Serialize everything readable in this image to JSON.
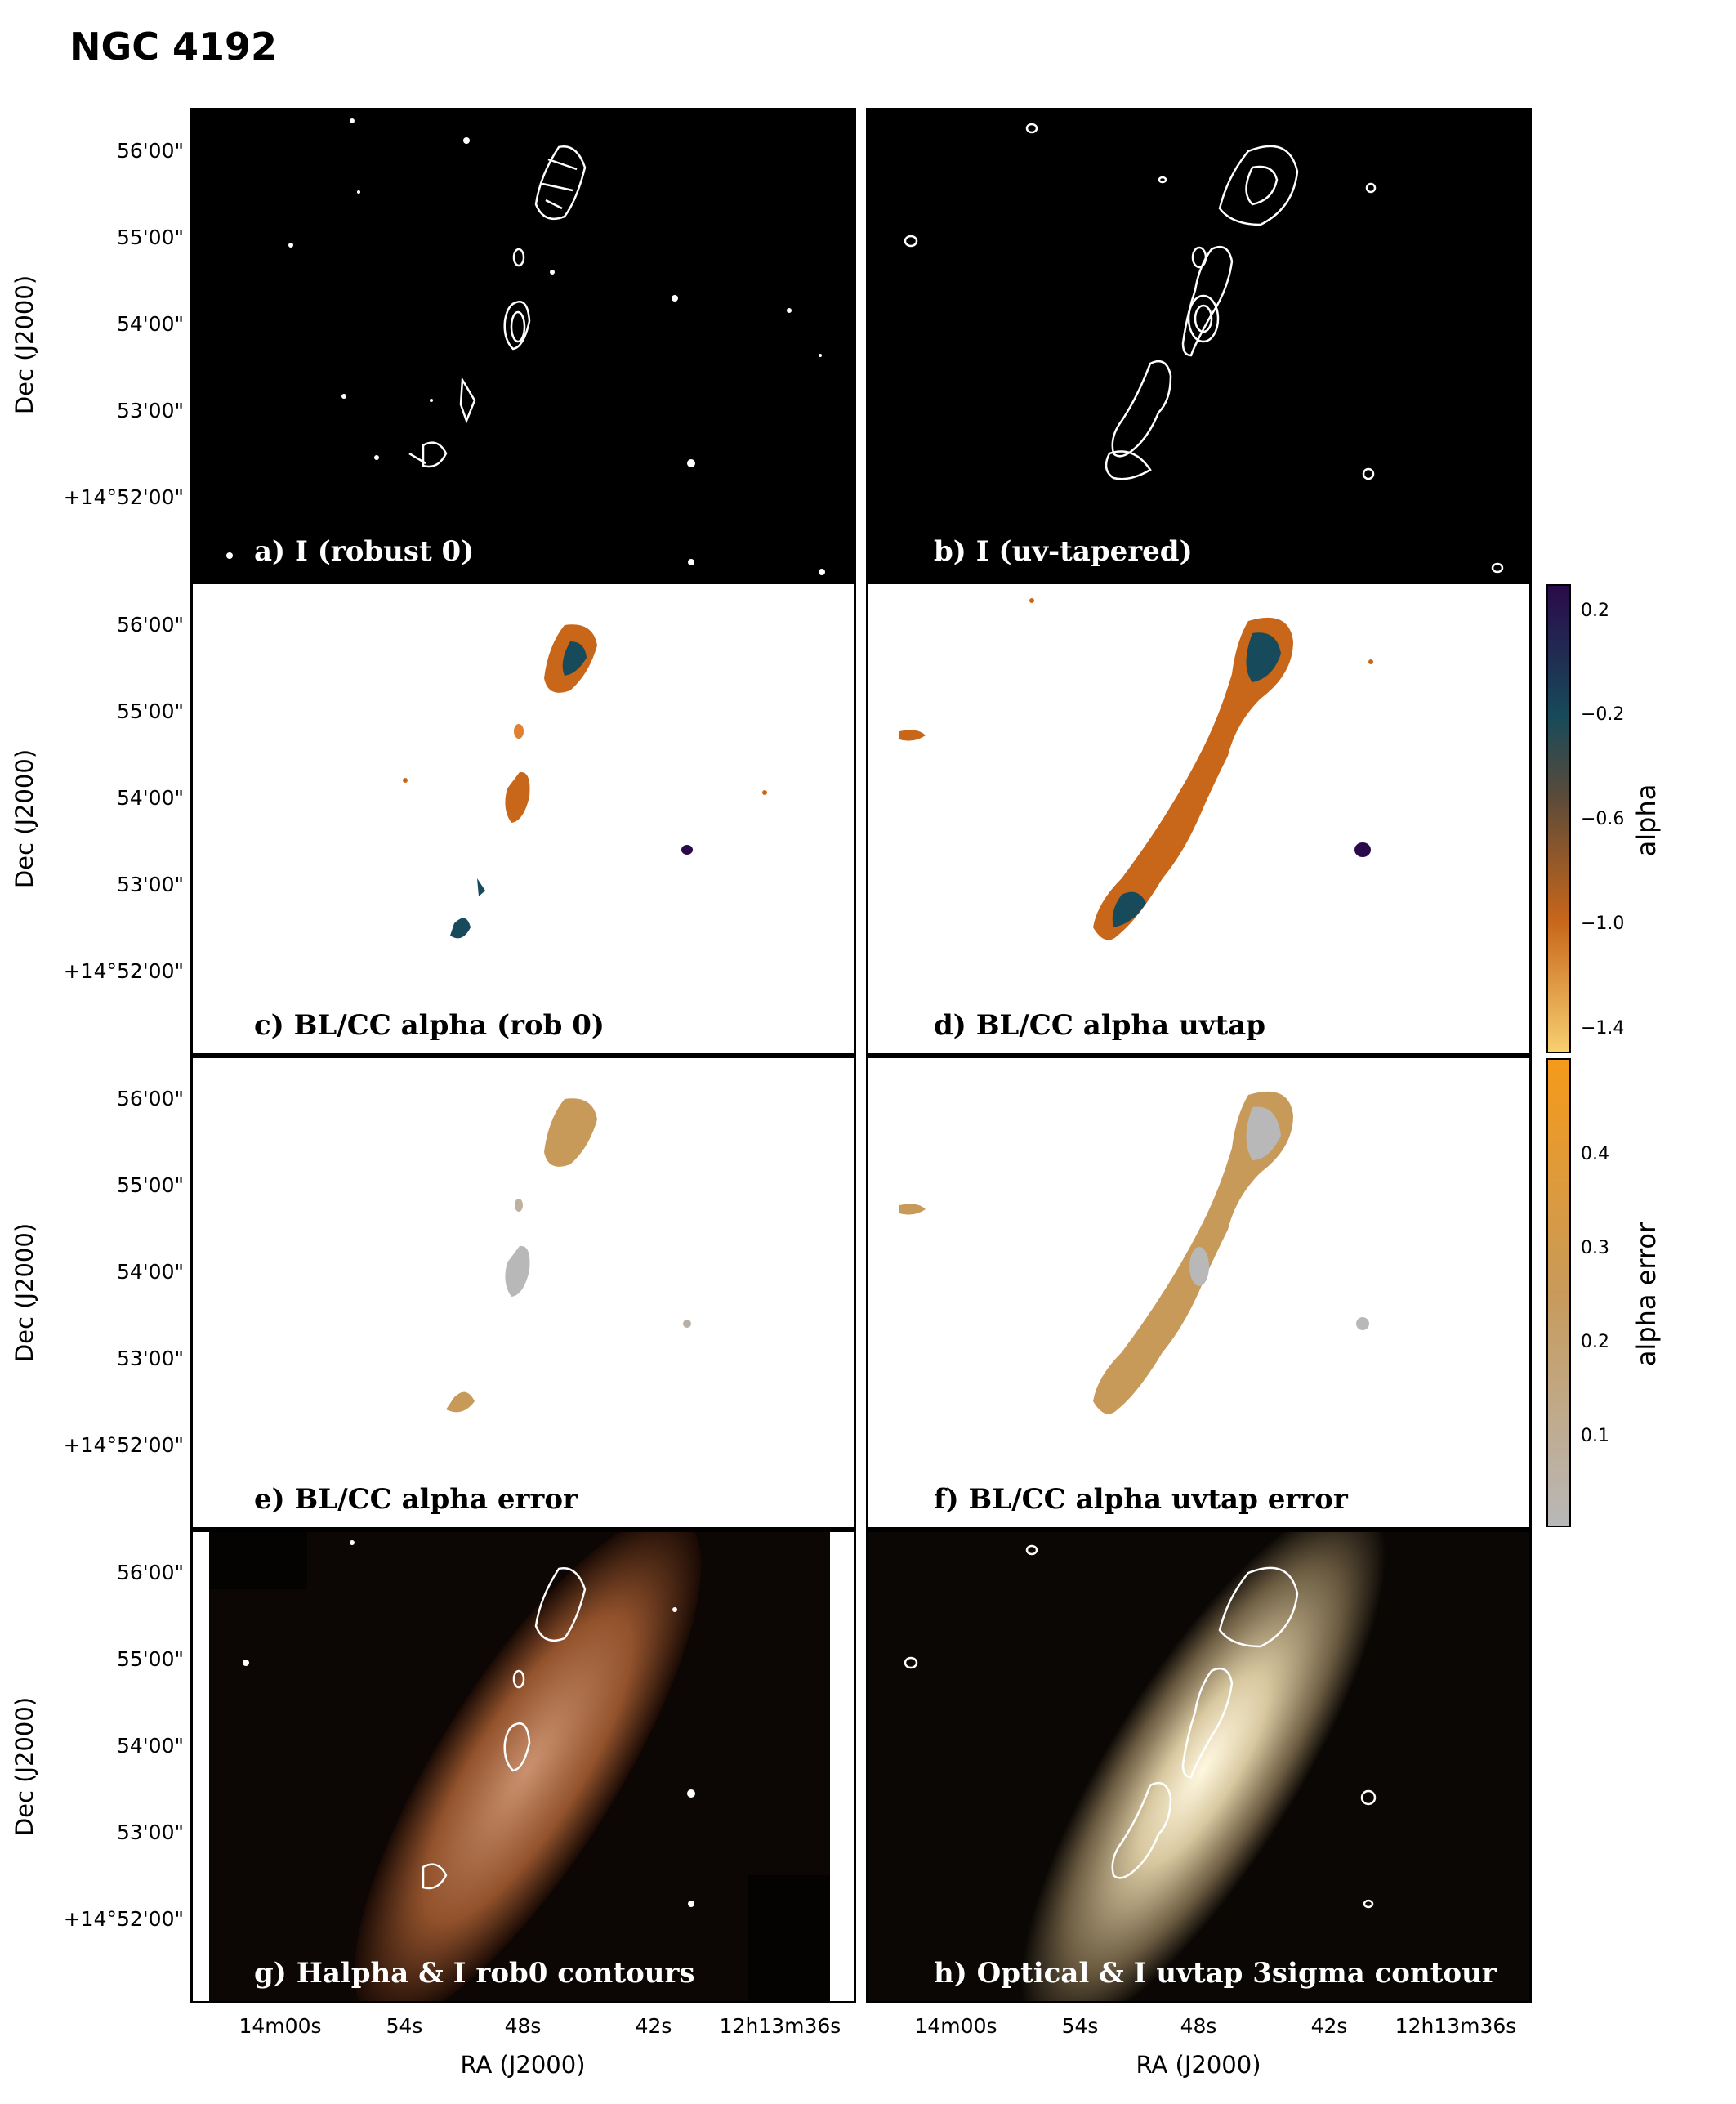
{
  "figure": {
    "title": "NGC 4192"
  },
  "axes": {
    "ylabel": "Dec (J2000)",
    "xlabel": "RA (J2000)",
    "yticks": [
      "56'00\"",
      "55'00\"",
      "54'00\"",
      "53'00\"",
      "+14°52'00\""
    ],
    "xticks": [
      "14m00s",
      "54s",
      "48s",
      "42s",
      "12h13m36s"
    ]
  },
  "panels": {
    "a": {
      "label": "a) I (robust 0)"
    },
    "b": {
      "label": "b) I (uv-tapered)"
    },
    "c": {
      "label": "c) BL/CC alpha (rob 0)"
    },
    "d": {
      "label": "d) BL/CC alpha uvtap"
    },
    "e": {
      "label": "e)  BL/CC alpha error"
    },
    "f": {
      "label": "f) BL/CC alpha uvtap error"
    },
    "g": {
      "label": "g) Halpha & I rob0 contours"
    },
    "h": {
      "label": "h) Optical & I uvtap 3sigma contour"
    }
  },
  "colorbars": {
    "alpha": {
      "label": "alpha",
      "ticks": [
        "0.2",
        "−0.2",
        "−0.6",
        "−1.0",
        "−1.4"
      ],
      "colors": {
        "high": "#2a0a4a",
        "mid_high": "#174a5a",
        "mid": "#5a4a3a",
        "mid_low": "#c8661a",
        "low": "#f7d070"
      }
    },
    "alpha_error": {
      "label": "alpha error",
      "ticks": [
        "0.4",
        "0.3",
        "0.2",
        "0.1"
      ],
      "colors": {
        "high": "#f59a1a",
        "mid": "#c89a5a",
        "low": "#b8b8b8"
      }
    }
  }
}
